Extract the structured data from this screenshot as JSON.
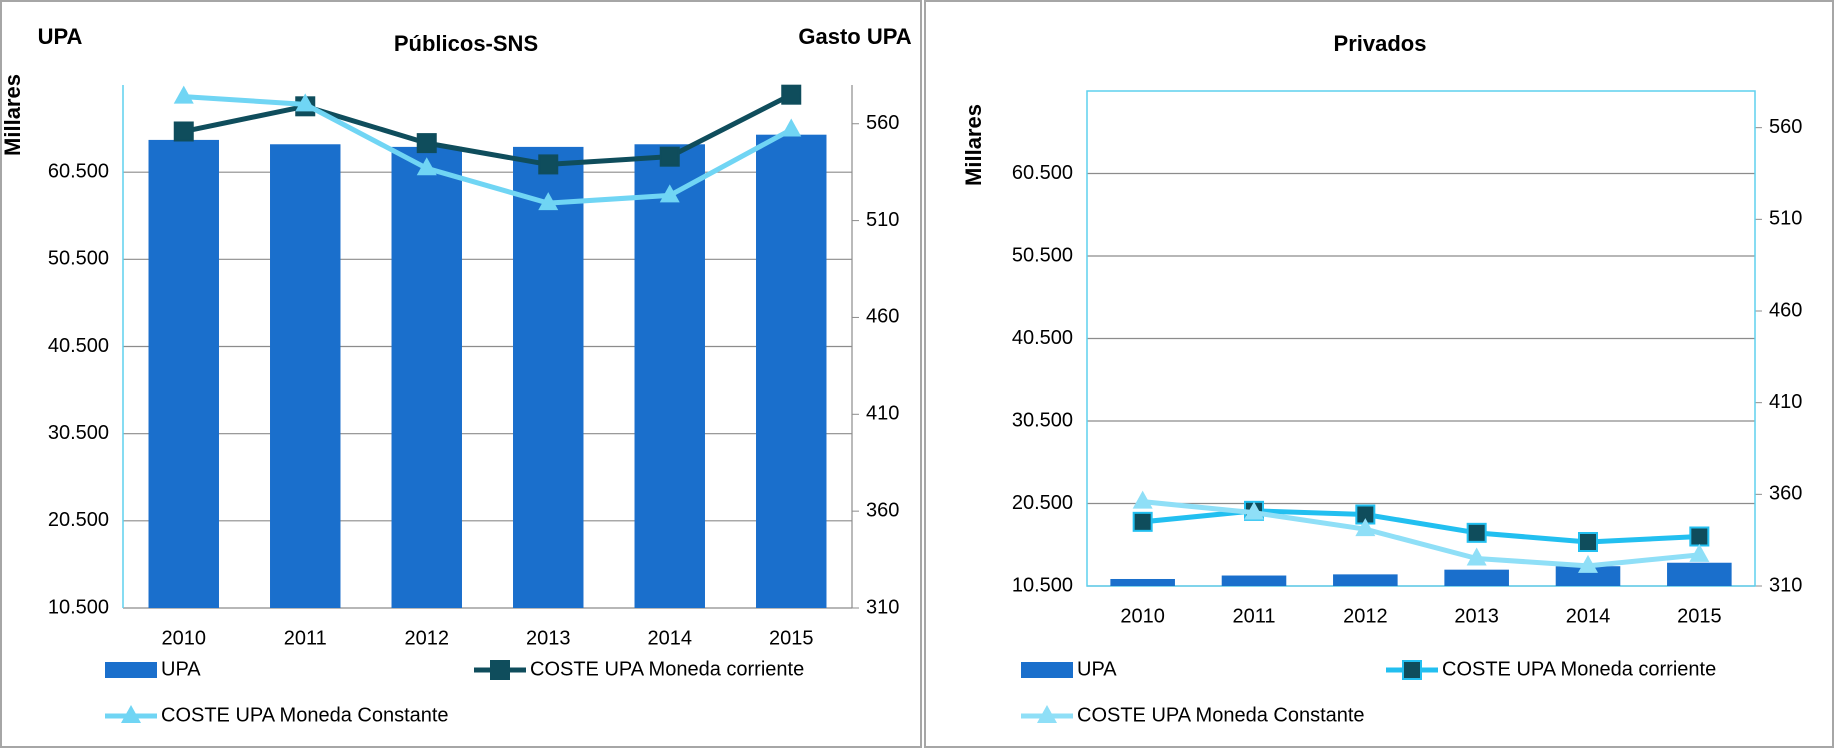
{
  "chart_data": [
    {
      "type": "bar",
      "title": "Públicos-SNS",
      "y_title": "UPA",
      "y2_title": "Gasto UPA",
      "y_label": "Millares",
      "categories": [
        "2010",
        "2011",
        "2012",
        "2013",
        "2014",
        "2015"
      ],
      "ylim": [
        10500,
        70500
      ],
      "yticks": [
        {
          "value": 10500,
          "label": "10.500"
        },
        {
          "value": 20500,
          "label": "20.500"
        },
        {
          "value": 30500,
          "label": "30.500"
        },
        {
          "value": 40500,
          "label": "40.500"
        },
        {
          "value": 50500,
          "label": "50.500"
        },
        {
          "value": 60500,
          "label": "60.500"
        }
      ],
      "y2lim": [
        310,
        580
      ],
      "y2ticks": [
        310,
        360,
        410,
        460,
        510,
        560
      ],
      "grid": true,
      "series": [
        {
          "name": "UPA",
          "color": "#1a6fcc",
          "values": [
            64200,
            63700,
            63400,
            63400,
            63700,
            64800
          ]
        },
        {
          "name": "COSTE UPA Moneda corriente",
          "color": "#0f4d5c",
          "marker": "square",
          "axis": "y2",
          "values": [
            556,
            569,
            550,
            539,
            543,
            575
          ]
        },
        {
          "name": "COSTE UPA Moneda Constante",
          "color": "#70d5f4",
          "marker": "triangle",
          "axis": "y2",
          "values": [
            574,
            570,
            537,
            519,
            523,
            557
          ]
        }
      ]
    },
    {
      "type": "bar",
      "title": "Privados",
      "y_label": "Millares",
      "categories": [
        "2010",
        "2011",
        "2012",
        "2013",
        "2014",
        "2015"
      ],
      "ylim": [
        10500,
        70500
      ],
      "yticks": [
        {
          "value": 10500,
          "label": "10.500"
        },
        {
          "value": 20500,
          "label": "20.500"
        },
        {
          "value": 30500,
          "label": "30.500"
        },
        {
          "value": 40500,
          "label": "40.500"
        },
        {
          "value": 50500,
          "label": "50.500"
        },
        {
          "value": 60500,
          "label": "60.500"
        }
      ],
      "y2lim": [
        310,
        580
      ],
      "y2ticks": [
        310,
        360,
        410,
        460,
        510,
        560
      ],
      "grid": true,
      "series": [
        {
          "name": "UPA",
          "color": "#1a6fcc",
          "values": [
            11350,
            11770,
            11910,
            12480,
            12900,
            13320
          ]
        },
        {
          "name": "COSTE UPA Moneda corriente",
          "color": "#22bff0",
          "marker": "square",
          "axis": "y2",
          "values": [
            345,
            351,
            349,
            339,
            334,
            337
          ]
        },
        {
          "name": "COSTE UPA Moneda Constante",
          "color": "#8fdff7",
          "marker": "triangle",
          "axis": "y2",
          "values": [
            356,
            350,
            341,
            325,
            321,
            327
          ]
        }
      ]
    }
  ]
}
